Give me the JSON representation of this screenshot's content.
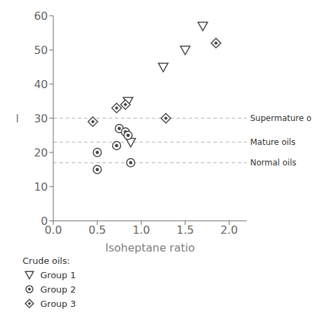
{
  "chart_data": {
    "type": "scatter",
    "xlabel": "Isoheptane ratio",
    "ylabel": "I",
    "xlim": [
      0,
      2.2
    ],
    "ylim": [
      0,
      60
    ],
    "xticks": [
      {
        "value": 0,
        "label": "0.0"
      },
      0.5,
      {
        "value": 1.0,
        "label": "1.0"
      },
      1.5,
      {
        "value": 2.0,
        "label": "2.0"
      }
    ],
    "yticks": [
      0,
      10,
      20,
      30,
      40,
      50,
      60
    ],
    "grid": false,
    "legend": "bottom",
    "legend_title": "Crude oils:",
    "color": "#444444",
    "series": [
      {
        "name": "Group 1",
        "marker": "triangle_down",
        "x": [
          1.25,
          1.5,
          1.7,
          0.85,
          0.88
        ],
        "values": [
          45,
          50,
          57,
          35,
          23
        ]
      },
      {
        "name": "Group 2",
        "marker": "circle_dot",
        "x": [
          0.5,
          0.5,
          0.72,
          0.75,
          0.82,
          0.85,
          0.88
        ],
        "values": [
          15,
          20,
          22,
          27,
          26,
          25,
          17
        ]
      },
      {
        "name": "Group 3",
        "marker": "diamond_dot",
        "x": [
          0.45,
          0.72,
          0.82,
          1.28,
          1.85
        ],
        "values": [
          29,
          33,
          34,
          30,
          52
        ]
      }
    ],
    "reference_lines": [
      {
        "value": 30,
        "label": "Supermature o",
        "color": "#aaaaaa",
        "line_style": "dashed"
      },
      {
        "value": 23,
        "label": "Mature oils",
        "color": "#aaaaaa",
        "line_style": "dashed"
      },
      {
        "value": 17,
        "label": "Normal oils",
        "color": "#aaaaaa",
        "line_style": "dashed"
      }
    ]
  }
}
